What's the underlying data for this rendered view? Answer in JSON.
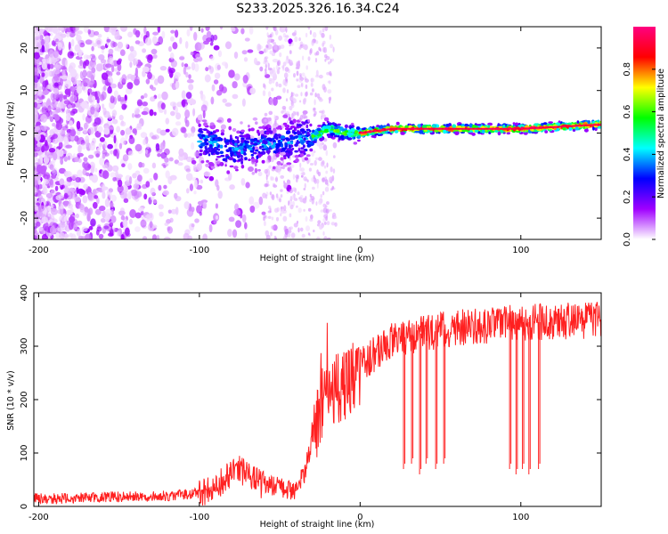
{
  "chart_data": [
    {
      "type": "heatmap",
      "title": "S233.2025.326.16.34.C24",
      "xlabel": "Height of straight line (km)",
      "ylabel": "Frequency (Hz)",
      "xlim": [
        -203,
        150
      ],
      "ylim": [
        -25,
        25
      ],
      "xticks": [
        {
          "value": -200,
          "label": "-200"
        },
        {
          "value": -100,
          "label": "-100"
        },
        {
          "value": 0,
          "label": "0"
        },
        {
          "value": 100,
          "label": "100"
        }
      ],
      "yticks": [
        {
          "value": 20,
          "label": "20"
        },
        {
          "value": 10,
          "label": "10"
        },
        {
          "value": 0,
          "label": "0"
        },
        {
          "value": -10,
          "label": "-10"
        },
        {
          "value": -20,
          "label": "-20"
        }
      ],
      "colorbar": {
        "label": "Normalized spectral amplitude",
        "range": [
          0,
          1
        ],
        "ticks": [
          {
            "value": 0.0,
            "label": "0.0"
          },
          {
            "value": 0.2,
            "label": "0.2"
          },
          {
            "value": 0.4,
            "label": "0.4"
          },
          {
            "value": 0.6,
            "label": "0.6"
          },
          {
            "value": 0.8,
            "label": "0.8"
          }
        ],
        "colors": [
          "#ffffff",
          "#a000ff",
          "#0000ff",
          "#00ffff",
          "#00ff00",
          "#ffff00",
          "#ff0000",
          "#ff0080"
        ]
      },
      "ridge_frequency_hz": [
        {
          "x": -95,
          "y": -2
        },
        {
          "x": -80,
          "y": -4
        },
        {
          "x": -65,
          "y": -3
        },
        {
          "x": -45,
          "y": -2
        },
        {
          "x": -30,
          "y": -1
        },
        {
          "x": -20,
          "y": 1
        },
        {
          "x": -10,
          "y": 0
        },
        {
          "x": 0,
          "y": 0
        },
        {
          "x": 20,
          "y": 1
        },
        {
          "x": 60,
          "y": 1
        },
        {
          "x": 100,
          "y": 1
        },
        {
          "x": 150,
          "y": 2
        }
      ]
    },
    {
      "type": "line",
      "xlabel": "Height of straight line (km)",
      "ylabel": "SNR (10 * v/v)",
      "xlim": [
        -203,
        150
      ],
      "ylim": [
        0,
        400
      ],
      "line_color": "#ff2020",
      "xticks": [
        {
          "value": -200,
          "label": "-200"
        },
        {
          "value": -100,
          "label": "-100"
        },
        {
          "value": 0,
          "label": "0"
        },
        {
          "value": 100,
          "label": "100"
        }
      ],
      "yticks": [
        {
          "value": 0,
          "label": "0"
        },
        {
          "value": 100,
          "label": "100"
        },
        {
          "value": 200,
          "label": "200"
        },
        {
          "value": 300,
          "label": "300"
        },
        {
          "value": 400,
          "label": "400"
        }
      ],
      "series": [
        {
          "name": "SNR",
          "x": [
            -203,
            -180,
            -160,
            -140,
            -120,
            -100,
            -90,
            -80,
            -75,
            -70,
            -60,
            -50,
            -40,
            -35,
            -30,
            -25,
            -20,
            -15,
            -10,
            -5,
            0,
            10,
            20,
            30,
            40,
            50,
            60,
            80,
            100,
            120,
            150
          ],
          "y": [
            15,
            15,
            18,
            18,
            20,
            25,
            35,
            60,
            70,
            55,
            40,
            35,
            30,
            60,
            120,
            180,
            210,
            220,
            230,
            245,
            260,
            290,
            310,
            320,
            325,
            330,
            335,
            340,
            345,
            345,
            350
          ]
        }
      ],
      "dropouts": [
        {
          "x": 27,
          "y": 70
        },
        {
          "x": 32,
          "y": 80
        },
        {
          "x": 37,
          "y": 60
        },
        {
          "x": 41,
          "y": 80
        },
        {
          "x": 47,
          "y": 70
        },
        {
          "x": 52,
          "y": 80
        },
        {
          "x": 93,
          "y": 70
        },
        {
          "x": 97,
          "y": 60
        },
        {
          "x": 101,
          "y": 70
        },
        {
          "x": 105,
          "y": 60
        },
        {
          "x": 111,
          "y": 70
        }
      ]
    }
  ]
}
